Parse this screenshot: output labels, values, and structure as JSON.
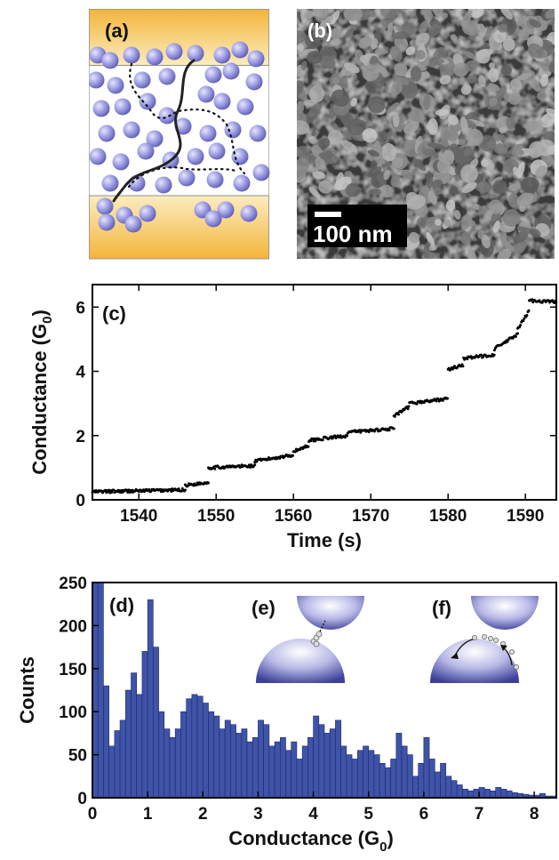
{
  "panels": {
    "a": {
      "label": "(a)"
    },
    "b": {
      "label": "(b)",
      "scale_bar": "100 nm"
    },
    "c": {
      "label": "(c)"
    },
    "d": {
      "label": "(d)"
    },
    "e": {
      "label": "(e)"
    },
    "f": {
      "label": "(f)"
    }
  },
  "colors": {
    "electrode_top": "#f7e6a8",
    "electrode_bottom": "#f3b53a",
    "particle": "#8e8ee0",
    "hist_bar": "#3f53a7",
    "dome": "#4a4fa8"
  },
  "chart_data": [
    {
      "type": "scatter",
      "panel": "c",
      "xlabel": "Time (s)",
      "ylabel_main": "Conductance (G",
      "ylabel_sub": "0",
      "ylabel_tail": ")",
      "xlim": [
        1534,
        1594
      ],
      "ylim": [
        0,
        6.7
      ],
      "xticks": [
        1540,
        1550,
        1560,
        1570,
        1580,
        1590
      ],
      "yticks": [
        0,
        2,
        4,
        6
      ],
      "plateaus": [
        {
          "t0": 1534,
          "t1": 1546,
          "g": 0.25,
          "slope": 0.005
        },
        {
          "t0": 1546,
          "t1": 1549,
          "g": 0.45,
          "slope": 0.03
        },
        {
          "t0": 1549,
          "t1": 1555,
          "g": 1.0,
          "slope": 0.01
        },
        {
          "t0": 1555,
          "t1": 1560,
          "g": 1.2,
          "slope": 0.04
        },
        {
          "t0": 1560,
          "t1": 1562,
          "g": 1.5,
          "slope": 0.1
        },
        {
          "t0": 1562,
          "t1": 1567,
          "g": 1.85,
          "slope": 0.03
        },
        {
          "t0": 1567,
          "t1": 1573,
          "g": 2.1,
          "slope": 0.02
        },
        {
          "t0": 1573,
          "t1": 1575,
          "g": 2.6,
          "slope": 0.15
        },
        {
          "t0": 1575,
          "t1": 1580,
          "g": 3.0,
          "slope": 0.03
        },
        {
          "t0": 1580,
          "t1": 1582,
          "g": 4.05,
          "slope": 0.08
        },
        {
          "t0": 1582,
          "t1": 1586,
          "g": 4.4,
          "slope": 0.03
        },
        {
          "t0": 1586,
          "t1": 1589,
          "g": 4.7,
          "slope": 0.15
        },
        {
          "t0": 1589,
          "t1": 1590.5,
          "g": 5.3,
          "slope": 0.4
        },
        {
          "t0": 1590.5,
          "t1": 1594,
          "g": 6.2,
          "slope": -0.01
        }
      ]
    },
    {
      "type": "bar",
      "panel": "d",
      "xlabel_main": "Conductance (G",
      "xlabel_sub": "0",
      "xlabel_tail": ")",
      "ylabel": "Counts",
      "xlim": [
        0,
        8.4
      ],
      "ylim": [
        0,
        250
      ],
      "xticks": [
        0,
        1,
        2,
        3,
        4,
        5,
        6,
        7,
        8
      ],
      "yticks": [
        0,
        50,
        100,
        150,
        200,
        250
      ],
      "bin_width": 0.1,
      "values": [
        250,
        250,
        130,
        60,
        78,
        90,
        125,
        145,
        120,
        170,
        230,
        175,
        100,
        80,
        70,
        80,
        100,
        115,
        120,
        118,
        110,
        100,
        95,
        80,
        90,
        85,
        75,
        80,
        65,
        70,
        90,
        85,
        60,
        65,
        70,
        55,
        65,
        45,
        60,
        70,
        95,
        85,
        75,
        80,
        90,
        60,
        50,
        45,
        55,
        60,
        55,
        50,
        40,
        35,
        45,
        75,
        60,
        50,
        25,
        40,
        70,
        45,
        30,
        40,
        25,
        20,
        15,
        10,
        8,
        10,
        12,
        10,
        8,
        12,
        10,
        8,
        6,
        5,
        4,
        3,
        3,
        5,
        2,
        2
      ]
    }
  ]
}
